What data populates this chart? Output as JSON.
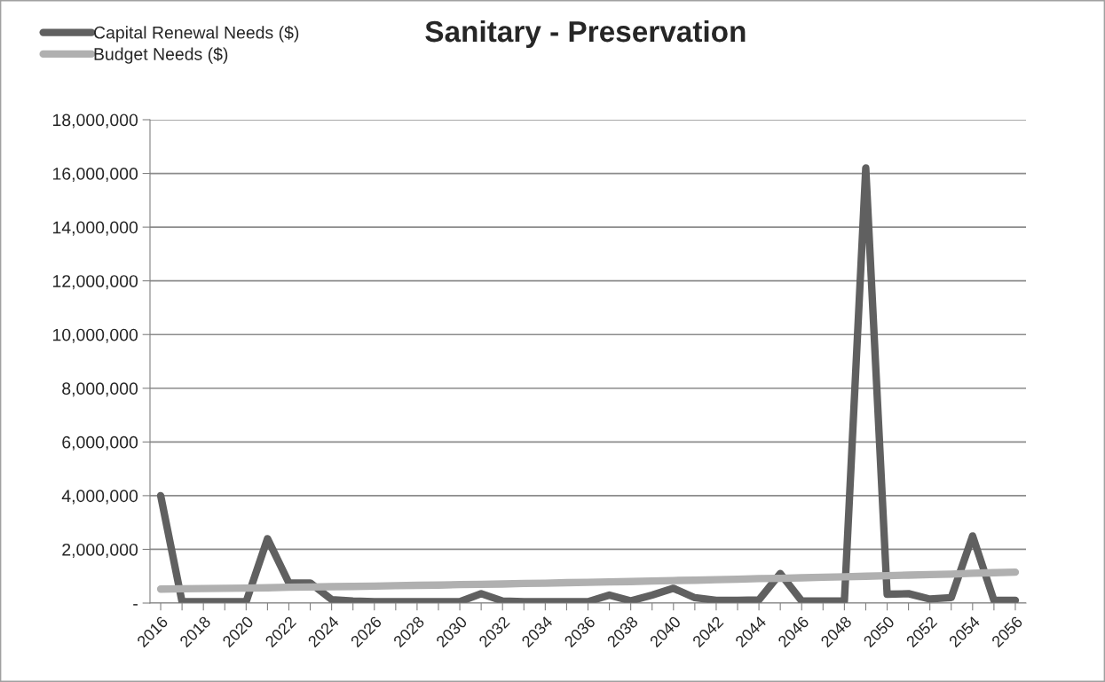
{
  "chart_data": {
    "type": "line",
    "title": "Sanitary - Preservation",
    "categories": [
      "2016",
      null,
      "2018",
      null,
      "2020",
      null,
      "2022",
      null,
      "2024",
      null,
      "2026",
      null,
      "2028",
      null,
      "2030",
      null,
      "2032",
      null,
      "2034",
      null,
      "2036",
      null,
      "2038",
      null,
      "2040",
      null,
      "2042",
      null,
      "2044",
      null,
      "2046",
      null,
      "2048",
      null,
      "2050",
      null,
      "2052",
      null,
      "2054",
      null,
      "2056"
    ],
    "series": [
      {
        "name": "Capital Renewal Needs ($)",
        "color": "#606060",
        "values": [
          4000000,
          50000,
          50000,
          50000,
          50000,
          2400000,
          750000,
          750000,
          130000,
          80000,
          50000,
          50000,
          50000,
          50000,
          50000,
          350000,
          80000,
          50000,
          50000,
          50000,
          50000,
          300000,
          80000,
          300000,
          550000,
          200000,
          100000,
          100000,
          120000,
          1100000,
          80000,
          80000,
          80000,
          16200000,
          330000,
          350000,
          150000,
          200000,
          2500000,
          100000,
          100000
        ]
      },
      {
        "name": "Budget Needs ($)",
        "color": "#b0b0b0",
        "values": [
          520000,
          530000,
          540000,
          550000,
          560000,
          570000,
          590000,
          600000,
          610000,
          620000,
          630000,
          650000,
          660000,
          670000,
          690000,
          700000,
          710000,
          730000,
          740000,
          760000,
          770000,
          790000,
          800000,
          820000,
          840000,
          850000,
          870000,
          890000,
          910000,
          920000,
          940000,
          960000,
          980000,
          1000000,
          1020000,
          1040000,
          1060000,
          1080000,
          1110000,
          1130000,
          1150000
        ]
      }
    ],
    "ylim": [
      0,
      18000000
    ],
    "yticks": [
      {
        "value": 0,
        "label": "-"
      },
      {
        "value": 2000000,
        "label": "2,000,000"
      },
      {
        "value": 4000000,
        "label": "4,000,000"
      },
      {
        "value": 6000000,
        "label": "6,000,000"
      },
      {
        "value": 8000000,
        "label": "8,000,000"
      },
      {
        "value": 10000000,
        "label": "10,000,000"
      },
      {
        "value": 12000000,
        "label": "12,000,000"
      },
      {
        "value": 14000000,
        "label": "14,000,000"
      },
      {
        "value": 16000000,
        "label": "16,000,000"
      },
      {
        "value": 18000000,
        "label": "18,000,000"
      }
    ],
    "grid": "y",
    "legend": "top left",
    "marker": "none",
    "line_style": "solid"
  }
}
